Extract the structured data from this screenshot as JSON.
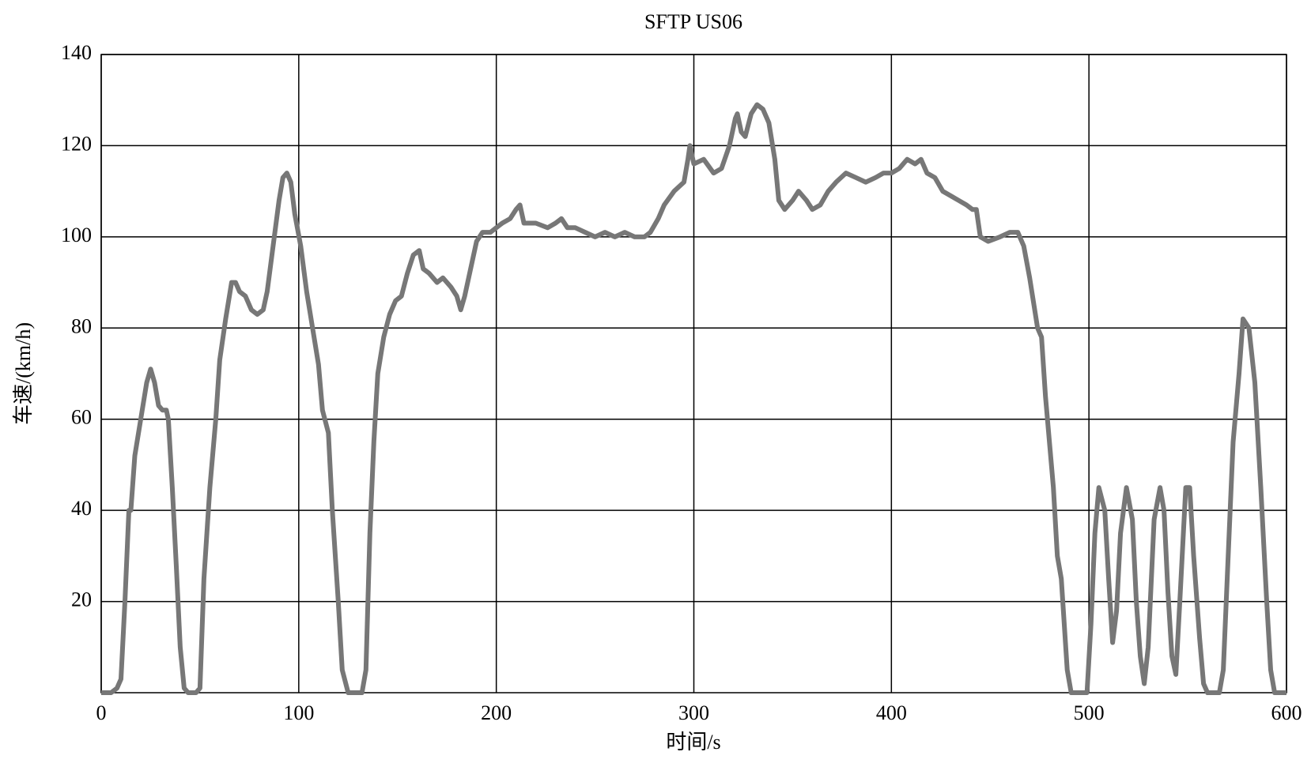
{
  "chart_data": {
    "type": "line",
    "title": "SFTP US06",
    "x_label": "时间/s",
    "y_label": "车速/(km/h)",
    "x": [
      0,
      5,
      8,
      10,
      12,
      14,
      15,
      17,
      20,
      23,
      25,
      27,
      29,
      31,
      33,
      34,
      36,
      38,
      40,
      42,
      44,
      48,
      50,
      52,
      55,
      58,
      60,
      63,
      66,
      68,
      70,
      73,
      76,
      79,
      82,
      84,
      87,
      90,
      92,
      94,
      96,
      98,
      101,
      104,
      107,
      110,
      112,
      115,
      117,
      120,
      122,
      125,
      132,
      134,
      136,
      138,
      140,
      143,
      146,
      149,
      152,
      155,
      158,
      161,
      163,
      166,
      170,
      173,
      177,
      180,
      182,
      184,
      187,
      190,
      193,
      197,
      200,
      203,
      207,
      210,
      212,
      214,
      220,
      226,
      230,
      233,
      236,
      240,
      245,
      250,
      255,
      260,
      265,
      270,
      275,
      278,
      282,
      285,
      290,
      295,
      297,
      298,
      300,
      305,
      310,
      314,
      318,
      321,
      322,
      324,
      326,
      329,
      332,
      335,
      338,
      341,
      343,
      346,
      350,
      353,
      357,
      360,
      364,
      368,
      372,
      377,
      382,
      387,
      392,
      396,
      400,
      404,
      408,
      412,
      415,
      418,
      422,
      426,
      430,
      434,
      438,
      441,
      443,
      445,
      449,
      455,
      460,
      464,
      467,
      470,
      474,
      476,
      478,
      480,
      482,
      484,
      486,
      489,
      491,
      499,
      501,
      503,
      505,
      508,
      510,
      512,
      514,
      516,
      519,
      522,
      524,
      526,
      528,
      530,
      533,
      536,
      538,
      540,
      542,
      544,
      546,
      549,
      551,
      553,
      556,
      558,
      560,
      566,
      568,
      571,
      573,
      576,
      578,
      581,
      584,
      587,
      590,
      592,
      594,
      600
    ],
    "series": [
      {
        "name": "SFTP US06",
        "color": "#777777",
        "values": [
          0,
          0,
          1,
          3,
          20,
          40,
          40,
          52,
          60,
          68,
          71,
          68,
          63,
          62,
          62,
          60,
          45,
          28,
          10,
          1,
          0,
          0,
          1,
          25,
          45,
          60,
          73,
          82,
          90,
          90,
          88,
          87,
          84,
          83,
          84,
          88,
          98,
          108,
          113,
          114,
          112,
          105,
          98,
          88,
          80,
          72,
          62,
          57,
          40,
          20,
          5,
          0,
          0,
          5,
          35,
          55,
          70,
          78,
          83,
          86,
          87,
          92,
          96,
          97,
          93,
          92,
          90,
          91,
          89,
          87,
          84,
          87,
          93,
          99,
          101,
          101,
          102,
          103,
          104,
          106,
          107,
          103,
          103,
          102,
          103,
          104,
          102,
          102,
          101,
          100,
          101,
          100,
          101,
          100,
          100,
          101,
          104,
          107,
          110,
          112,
          117,
          120,
          116,
          117,
          114,
          115,
          120,
          126,
          127,
          123,
          122,
          127,
          129,
          128,
          125,
          117,
          108,
          106,
          108,
          110,
          108,
          106,
          107,
          110,
          112,
          114,
          113,
          112,
          113,
          114,
          114,
          115,
          117,
          116,
          117,
          114,
          113,
          110,
          109,
          108,
          107,
          106,
          106,
          100,
          99,
          100,
          101,
          101,
          98,
          91,
          80,
          78,
          65,
          55,
          45,
          30,
          25,
          5,
          0,
          0,
          15,
          35,
          45,
          40,
          25,
          11,
          18,
          35,
          45,
          38,
          20,
          8,
          2,
          10,
          38,
          45,
          40,
          22,
          8,
          4,
          20,
          45,
          45,
          30,
          12,
          2,
          0,
          0,
          5,
          35,
          55,
          70,
          82,
          80,
          68,
          45,
          20,
          5,
          0,
          0
        ]
      }
    ],
    "xlim": [
      0,
      600
    ],
    "xticks": [
      0,
      100,
      200,
      300,
      400,
      500,
      600
    ],
    "ylim": [
      0,
      140
    ],
    "yticks": [
      20,
      40,
      60,
      80,
      100,
      120,
      140
    ],
    "grid": true
  }
}
